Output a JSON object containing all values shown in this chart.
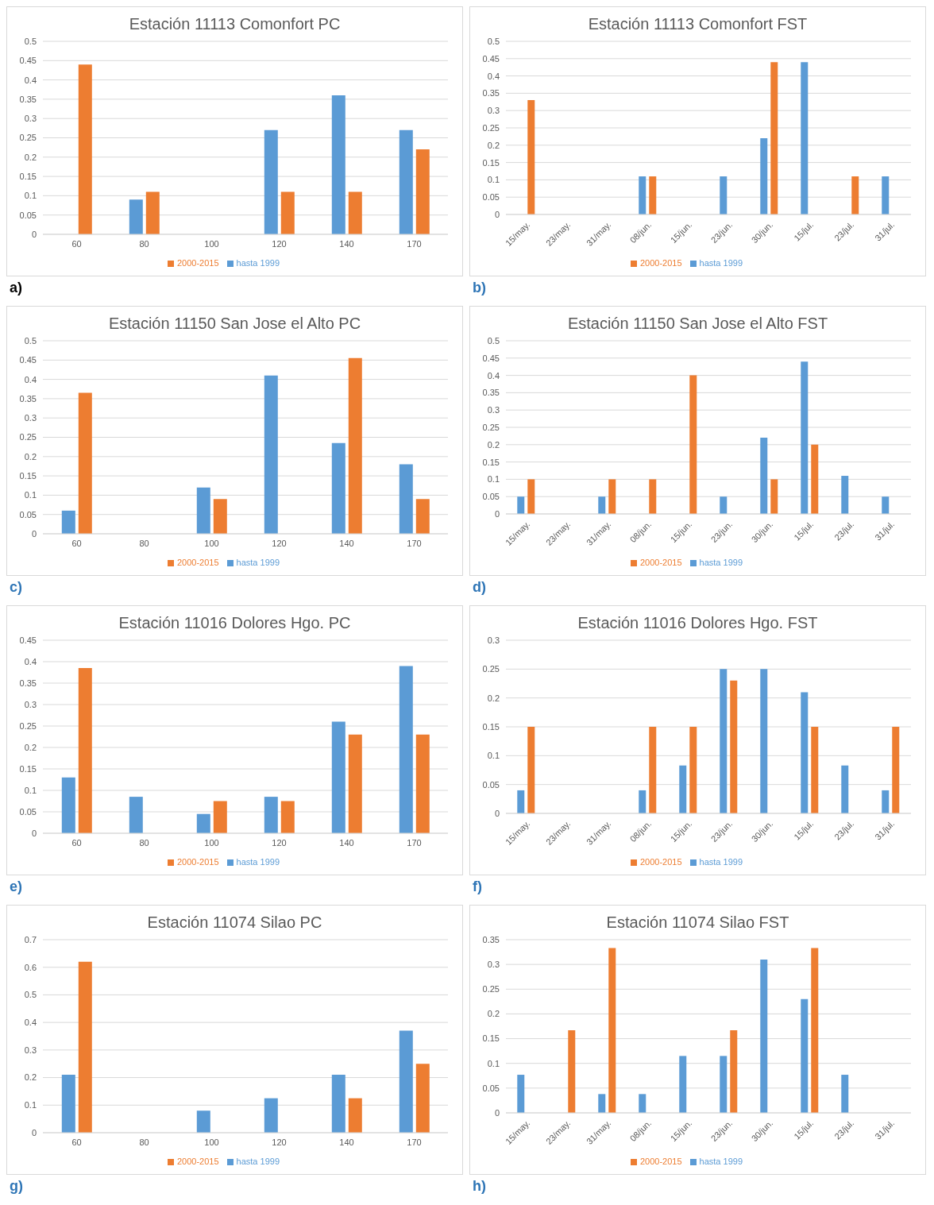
{
  "chart_data": [
    {
      "type": "bar",
      "title": "Estación 11113 Comonfort PC",
      "categories": [
        "60",
        "80",
        "100",
        "120",
        "140",
        "170"
      ],
      "series": [
        {
          "name": "hasta 1999",
          "color": "#5b9bd5",
          "values": [
            0,
            0.09,
            0,
            0.27,
            0.36,
            0.27
          ]
        },
        {
          "name": "2000-2015",
          "color": "#ed7d31",
          "values": [
            0.44,
            0.11,
            0,
            0.11,
            0.11,
            0.22
          ]
        }
      ],
      "ylim": [
        0,
        0.5
      ],
      "yticks": [
        0,
        0.05,
        0.1,
        0.15,
        0.2,
        0.25,
        0.3,
        0.35,
        0.4,
        0.45,
        0.5
      ],
      "grid": "y",
      "legend": "bottom",
      "annotations": [
        "a)"
      ]
    },
    {
      "type": "bar",
      "title": "Estación 11113 Comonfort FST",
      "categories": [
        "15/may.",
        "23/may.",
        "31/may.",
        "08/jun.",
        "15/jun.",
        "23/jun.",
        "30/jun.",
        "15/jul.",
        "23/jul.",
        "31/jul."
      ],
      "series": [
        {
          "name": "hasta 1999",
          "color": "#5b9bd5",
          "values": [
            0,
            0,
            0,
            0.11,
            0,
            0.11,
            0.22,
            0.44,
            0,
            0.11
          ]
        },
        {
          "name": "2000-2015",
          "color": "#ed7d31",
          "values": [
            0.33,
            0,
            0,
            0.11,
            0,
            0,
            0.44,
            0,
            0.11,
            0
          ]
        }
      ],
      "ylim": [
        0,
        0.5
      ],
      "yticks": [
        0,
        0.05,
        0.1,
        0.15,
        0.2,
        0.25,
        0.3,
        0.35,
        0.4,
        0.45,
        0.5
      ],
      "grid": "y",
      "legend": "bottom",
      "annotations": [
        "b)"
      ]
    },
    {
      "type": "bar",
      "title": "Estación 11150 San Jose el Alto PC",
      "categories": [
        "60",
        "80",
        "100",
        "120",
        "140",
        "170"
      ],
      "series": [
        {
          "name": "hasta 1999",
          "color": "#5b9bd5",
          "values": [
            0.06,
            0,
            0.12,
            0.41,
            0.235,
            0.18
          ]
        },
        {
          "name": "2000-2015",
          "color": "#ed7d31",
          "values": [
            0.365,
            0,
            0.09,
            0,
            0.455,
            0.09
          ]
        }
      ],
      "ylim": [
        0,
        0.5
      ],
      "yticks": [
        0,
        0.05,
        0.1,
        0.15,
        0.2,
        0.25,
        0.3,
        0.35,
        0.4,
        0.45,
        0.5
      ],
      "grid": "y",
      "legend": "bottom",
      "annotations": [
        "c)"
      ]
    },
    {
      "type": "bar",
      "title": "Estación 11150 San Jose el Alto FST",
      "categories": [
        "15/may.",
        "23/may.",
        "31/may.",
        "08/jun.",
        "15/jun.",
        "23/jun.",
        "30/jun.",
        "15/jul.",
        "23/jul.",
        "31/jul."
      ],
      "series": [
        {
          "name": "hasta 1999",
          "color": "#5b9bd5",
          "values": [
            0.05,
            0,
            0.05,
            0,
            0,
            0.05,
            0.22,
            0.44,
            0.11,
            0.05
          ]
        },
        {
          "name": "2000-2015",
          "color": "#ed7d31",
          "values": [
            0.1,
            0,
            0.1,
            0.1,
            0.4,
            0,
            0.1,
            0.2,
            0,
            0
          ]
        }
      ],
      "ylim": [
        0,
        0.5
      ],
      "yticks": [
        0,
        0.05,
        0.1,
        0.15,
        0.2,
        0.25,
        0.3,
        0.35,
        0.4,
        0.45,
        0.5
      ],
      "grid": "y",
      "legend": "bottom",
      "annotations": [
        "d)"
      ]
    },
    {
      "type": "bar",
      "title": "Estación 11016 Dolores Hgo. PC",
      "categories": [
        "60",
        "80",
        "100",
        "120",
        "140",
        "170"
      ],
      "series": [
        {
          "name": "hasta 1999",
          "color": "#5b9bd5",
          "values": [
            0.13,
            0.085,
            0.045,
            0.085,
            0.26,
            0.39
          ]
        },
        {
          "name": "2000-2015",
          "color": "#ed7d31",
          "values": [
            0.385,
            0,
            0.075,
            0.075,
            0.23,
            0.23
          ]
        }
      ],
      "ylim": [
        0,
        0.45
      ],
      "yticks": [
        0,
        0.05,
        0.1,
        0.15,
        0.2,
        0.25,
        0.3,
        0.35,
        0.4,
        0.45
      ],
      "grid": "y",
      "legend": "bottom",
      "annotations": [
        "e)"
      ]
    },
    {
      "type": "bar",
      "title": "Estación 11016 Dolores Hgo. FST",
      "categories": [
        "15/may.",
        "23/may.",
        "31/may.",
        "08/jun.",
        "15/jun.",
        "23/jun.",
        "30/jun.",
        "15/jul.",
        "23/jul.",
        "31/jul."
      ],
      "series": [
        {
          "name": "hasta 1999",
          "color": "#5b9bd5",
          "values": [
            0.04,
            0,
            0,
            0.04,
            0.083,
            0.25,
            0.25,
            0.21,
            0.083,
            0.04
          ]
        },
        {
          "name": "2000-2015",
          "color": "#ed7d31",
          "values": [
            0.15,
            0,
            0,
            0.15,
            0.15,
            0.23,
            0,
            0.15,
            0,
            0.15
          ]
        }
      ],
      "ylim": [
        0,
        0.3
      ],
      "yticks": [
        0,
        0.05,
        0.1,
        0.15,
        0.2,
        0.25,
        0.3
      ],
      "grid": "y",
      "legend": "bottom",
      "annotations": [
        "f)"
      ]
    },
    {
      "type": "bar",
      "title": "Estación 11074 Silao PC",
      "categories": [
        "60",
        "80",
        "100",
        "120",
        "140",
        "170"
      ],
      "series": [
        {
          "name": "hasta 1999",
          "color": "#5b9bd5",
          "values": [
            0.21,
            0,
            0.08,
            0.125,
            0.21,
            0.37
          ]
        },
        {
          "name": "2000-2015",
          "color": "#ed7d31",
          "values": [
            0.62,
            0,
            0,
            0,
            0.125,
            0.25
          ]
        }
      ],
      "ylim": [
        0,
        0.7
      ],
      "yticks": [
        0,
        0.1,
        0.2,
        0.3,
        0.4,
        0.5,
        0.6,
        0.7
      ],
      "grid": "y",
      "legend": "bottom",
      "annotations": [
        "g)"
      ]
    },
    {
      "type": "bar",
      "title": "Estación 11074 Silao FST",
      "categories": [
        "15/may.",
        "23/may.",
        "31/may.",
        "08/jun.",
        "15/jun.",
        "23/jun.",
        "30/jun.",
        "15/jul.",
        "23/jul.",
        "31/jul."
      ],
      "series": [
        {
          "name": "hasta 1999",
          "color": "#5b9bd5",
          "values": [
            0.077,
            0,
            0.038,
            0.038,
            0.115,
            0.115,
            0.31,
            0.23,
            0.077,
            0
          ]
        },
        {
          "name": "2000-2015",
          "color": "#ed7d31",
          "values": [
            0,
            0.167,
            0.333,
            0,
            0,
            0.167,
            0,
            0.333,
            0,
            0
          ]
        }
      ],
      "ylim": [
        0,
        0.35
      ],
      "yticks": [
        0,
        0.05,
        0.1,
        0.15,
        0.2,
        0.25,
        0.3,
        0.35
      ],
      "grid": "y",
      "legend": "bottom",
      "annotations": [
        "h)"
      ]
    }
  ]
}
